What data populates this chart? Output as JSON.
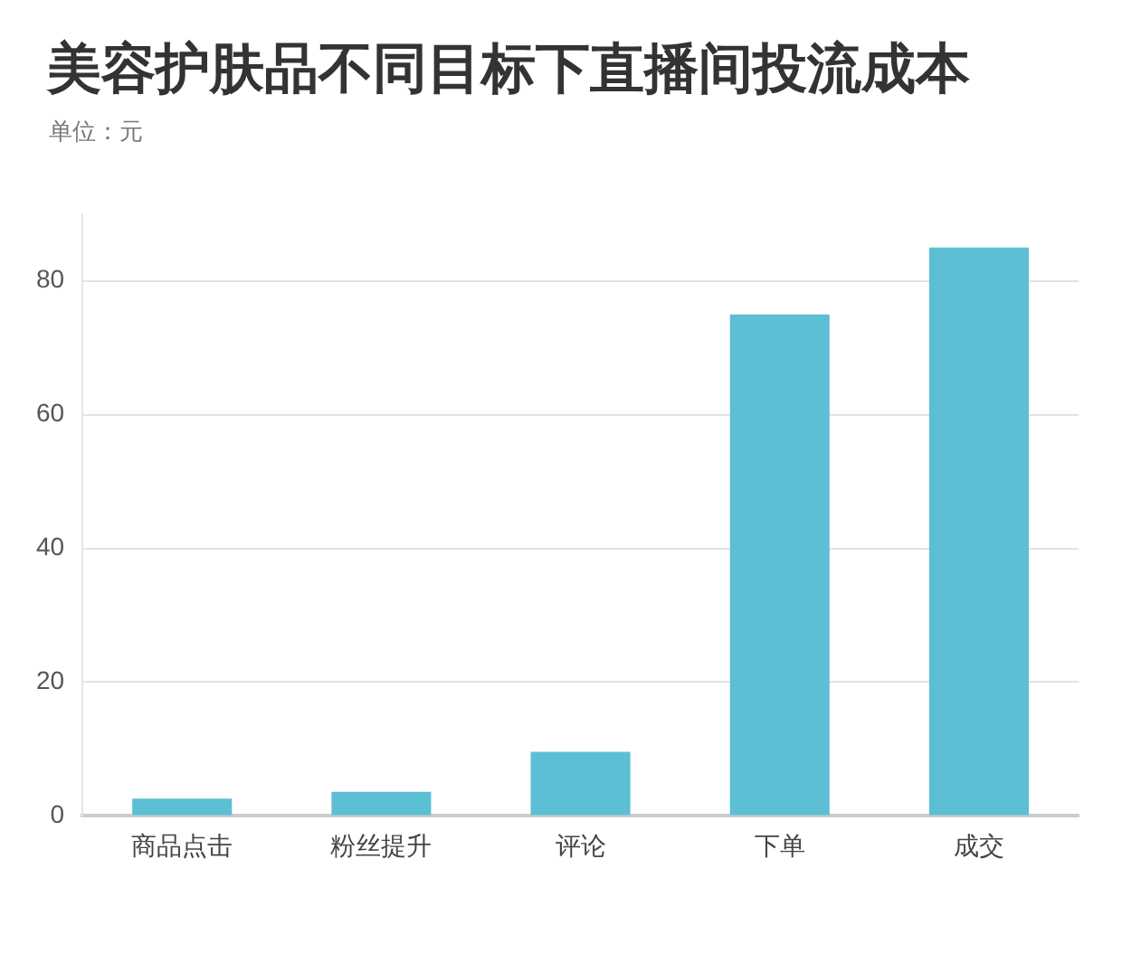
{
  "chart_data": {
    "type": "bar",
    "title": "美容护肤品不同目标下直播间投流成本",
    "subtitle": "单位：元",
    "categories": [
      "商品点击",
      "粉丝提升",
      "评论",
      "下单",
      "成交"
    ],
    "values": [
      2.6,
      3.6,
      9.6,
      75,
      85
    ],
    "color": "#5cbfd4",
    "ylim": [
      0,
      90
    ],
    "yticks": [
      0,
      20,
      40,
      60,
      80
    ],
    "grid": "y"
  }
}
